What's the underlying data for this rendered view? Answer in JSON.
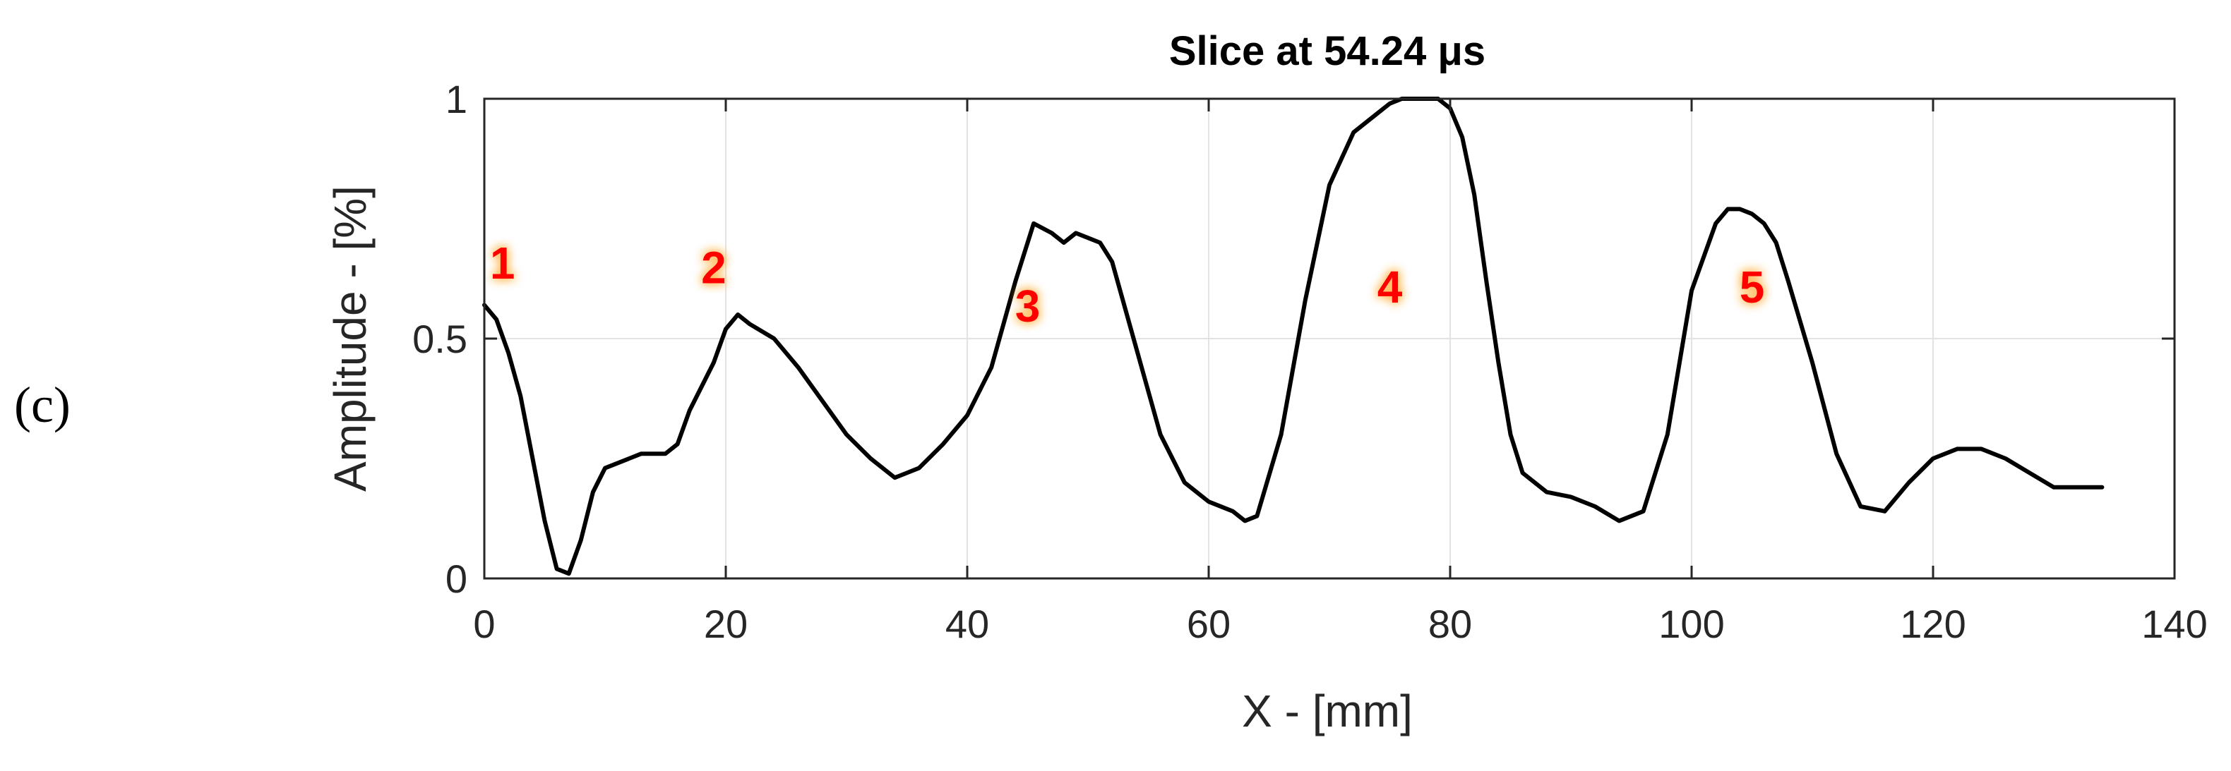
{
  "panel_label": "(c)",
  "chart_data": {
    "type": "line",
    "title": "Slice at 54.24 μs",
    "xlabel": "X - [mm]",
    "ylabel": "Amplitude - [%]",
    "xlim": [
      0,
      140
    ],
    "ylim": [
      0,
      1
    ],
    "xticks": [
      0,
      20,
      40,
      60,
      80,
      100,
      120,
      140
    ],
    "yticks": [
      0,
      0.5,
      1
    ],
    "xtick_labels": [
      "0",
      "20",
      "40",
      "60",
      "80",
      "100",
      "120",
      "140"
    ],
    "ytick_labels": [
      "0",
      "0.5",
      "1"
    ],
    "grid": true,
    "colors": {
      "line": "#000000",
      "annotation": "#ff0000",
      "annotation_glow": "#ffb347",
      "grid": "#e3e3e3",
      "axes": "#262626"
    },
    "series": [
      {
        "color": "#000000",
        "x": [
          0,
          1,
          2,
          3,
          4,
          5,
          6,
          7,
          8,
          9,
          10,
          11,
          12,
          13,
          14,
          15,
          16,
          17,
          18,
          19,
          20,
          21,
          22,
          24,
          26,
          28,
          30,
          32,
          34,
          36,
          38,
          40,
          42,
          44,
          45.5,
          47,
          48,
          49,
          50,
          51,
          52,
          54,
          56,
          58,
          60,
          62,
          63,
          64,
          66,
          68,
          70,
          72,
          74,
          75,
          76,
          77,
          78,
          79,
          80,
          81,
          82,
          83,
          84,
          85,
          86,
          88,
          90,
          92,
          94,
          96,
          98,
          100,
          102,
          103,
          104,
          105,
          106,
          107,
          108,
          110,
          112,
          114,
          116,
          118,
          120,
          122,
          124,
          126,
          128,
          130,
          132,
          134
        ],
        "y": [
          0.57,
          0.54,
          0.47,
          0.38,
          0.25,
          0.12,
          0.02,
          0.01,
          0.08,
          0.18,
          0.23,
          0.24,
          0.25,
          0.26,
          0.26,
          0.26,
          0.28,
          0.35,
          0.4,
          0.45,
          0.52,
          0.55,
          0.53,
          0.5,
          0.44,
          0.37,
          0.3,
          0.25,
          0.21,
          0.23,
          0.28,
          0.34,
          0.44,
          0.62,
          0.74,
          0.72,
          0.7,
          0.72,
          0.71,
          0.7,
          0.66,
          0.48,
          0.3,
          0.2,
          0.16,
          0.14,
          0.12,
          0.13,
          0.3,
          0.58,
          0.82,
          0.93,
          0.97,
          0.99,
          1.0,
          1.0,
          1.0,
          1.0,
          0.98,
          0.92,
          0.8,
          0.62,
          0.45,
          0.3,
          0.22,
          0.18,
          0.17,
          0.15,
          0.12,
          0.14,
          0.3,
          0.6,
          0.74,
          0.77,
          0.77,
          0.76,
          0.74,
          0.7,
          0.62,
          0.45,
          0.26,
          0.15,
          0.14,
          0.2,
          0.25,
          0.27,
          0.27,
          0.25,
          0.22,
          0.19,
          0.19,
          0.19
        ]
      }
    ],
    "annotations": [
      {
        "text": "1",
        "x": 1.5,
        "y": 0.65
      },
      {
        "text": "2",
        "x": 19,
        "y": 0.64
      },
      {
        "text": "3",
        "x": 45,
        "y": 0.56
      },
      {
        "text": "4",
        "x": 75,
        "y": 0.6
      },
      {
        "text": "5",
        "x": 105,
        "y": 0.6
      }
    ]
  }
}
